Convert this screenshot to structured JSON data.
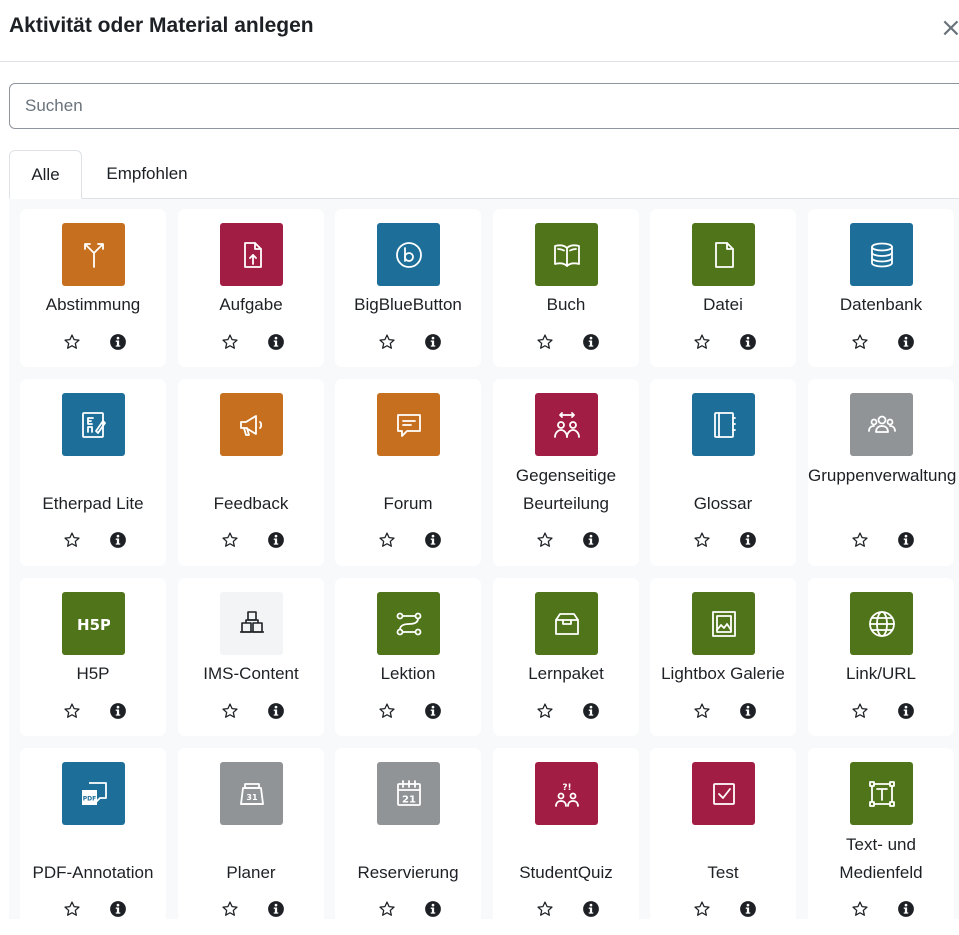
{
  "dialog": {
    "title": "Aktivität oder Material anlegen",
    "close_symbol": "×"
  },
  "search": {
    "placeholder": "Suchen",
    "value": ""
  },
  "tabs": [
    {
      "label": "Alle",
      "active": true
    },
    {
      "label": "Empfohlen",
      "active": false
    }
  ],
  "colors": {
    "orange": "#c6701f",
    "crimson": "#a21d43",
    "blue": "#1d6f9a",
    "green": "#4f7419",
    "gray": "#909497",
    "light": "#f2f4f6"
  },
  "modules": [
    {
      "label": "Abstimmung",
      "icon": "choice-icon",
      "color": "#c6701f"
    },
    {
      "label": "Aufgabe",
      "icon": "assignment-upload-icon",
      "color": "#a21d43"
    },
    {
      "label": "BigBlueButton",
      "icon": "bigbluebutton-icon",
      "color": "#1d6f9a"
    },
    {
      "label": "Buch",
      "icon": "book-icon",
      "color": "#4f7419"
    },
    {
      "label": "Datei",
      "icon": "file-icon",
      "color": "#4f7419"
    },
    {
      "label": "Datenbank",
      "icon": "database-icon",
      "color": "#1d6f9a"
    },
    {
      "label": "Etherpad Lite",
      "icon": "etherpad-icon",
      "color": "#1d6f9a"
    },
    {
      "label": "Feedback",
      "icon": "megaphone-icon",
      "color": "#c6701f"
    },
    {
      "label": "Forum",
      "icon": "speech-bubble-icon",
      "color": "#c6701f"
    },
    {
      "label": "Gegenseitige Beurteilung",
      "icon": "workshop-icon",
      "color": "#a21d43"
    },
    {
      "label": "Glossar",
      "icon": "glossary-icon",
      "color": "#1d6f9a"
    },
    {
      "label": "Gruppenverwaltung",
      "icon": "group-icon",
      "color": "#909497"
    },
    {
      "label": "H5P",
      "icon": "h5p-icon",
      "color": "#4f7419"
    },
    {
      "label": "IMS-Content",
      "icon": "ims-content-icon",
      "color": "#f2f4f6"
    },
    {
      "label": "Lektion",
      "icon": "lesson-icon",
      "color": "#4f7419"
    },
    {
      "label": "Lernpaket",
      "icon": "package-icon",
      "color": "#4f7419"
    },
    {
      "label": "Lightbox Galerie",
      "icon": "gallery-icon",
      "color": "#4f7419"
    },
    {
      "label": "Link/URL",
      "icon": "globe-icon",
      "color": "#4f7419"
    },
    {
      "label": "PDF-Annotation",
      "icon": "pdf-annotation-icon",
      "color": "#1d6f9a"
    },
    {
      "label": "Planer",
      "icon": "planner-icon",
      "color": "#909497"
    },
    {
      "label": "Reservierung",
      "icon": "calendar-icon",
      "color": "#909497"
    },
    {
      "label": "StudentQuiz",
      "icon": "studentquiz-icon",
      "color": "#a21d43"
    },
    {
      "label": "Test",
      "icon": "quiz-check-icon",
      "color": "#a21d43"
    },
    {
      "label": "Text- und Medienfeld",
      "icon": "text-media-icon",
      "color": "#4f7419"
    }
  ]
}
